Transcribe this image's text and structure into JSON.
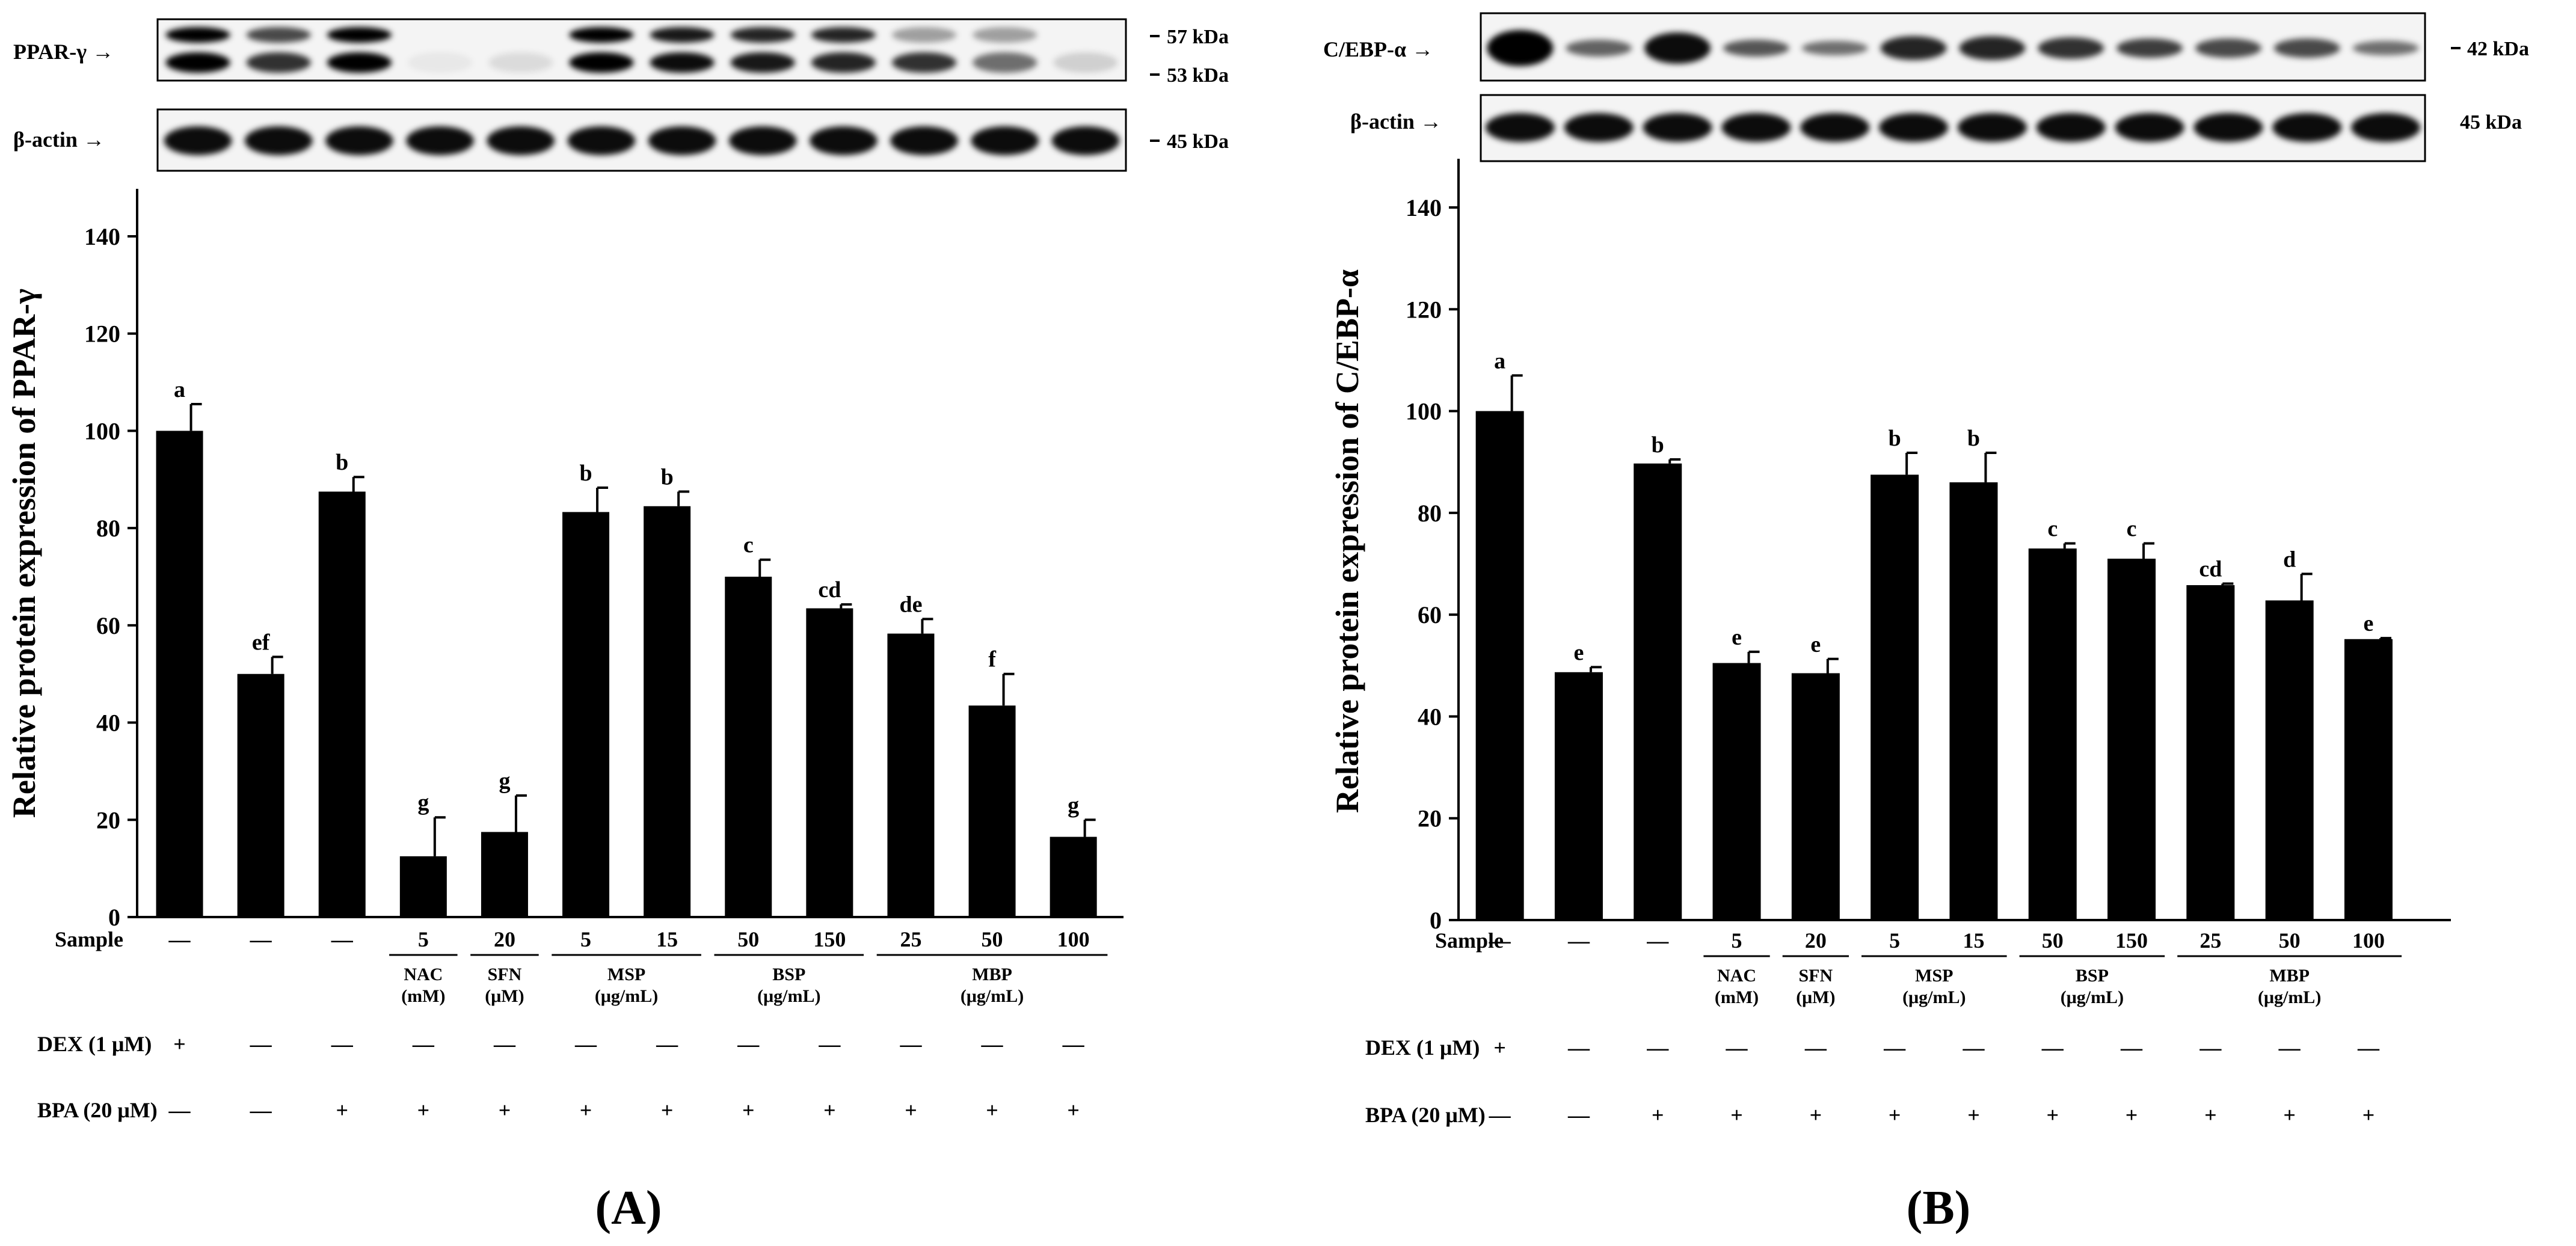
{
  "chart_data": [
    {
      "panel": "A",
      "type": "bar",
      "panel_label": "(A)",
      "ylabel": "Relative protein expression of PPAR-γ",
      "ylim": [
        0,
        150
      ],
      "yticks": [
        "0",
        "20",
        "40",
        "60",
        "80",
        "100",
        "120",
        "140"
      ],
      "values": [
        100,
        50,
        87.5,
        12.5,
        17.5,
        83.3,
        84.5,
        70,
        63.5,
        58.3,
        43.5,
        16.5
      ],
      "errors": [
        5.5,
        3.5,
        3.0,
        8.0,
        7.5,
        5.0,
        3.0,
        3.5,
        0.8,
        3.0,
        6.5,
        3.5
      ],
      "letters": [
        "a",
        "ef",
        "b",
        "g",
        "g",
        "b",
        "b",
        "c",
        "cd",
        "de",
        "f",
        "g"
      ],
      "blots": [
        {
          "label": "PPAR-γ →",
          "kda": [
            "57 kDa",
            "53 kDa"
          ]
        },
        {
          "label": "β-actin →",
          "kda": [
            "45 kDa"
          ]
        }
      ],
      "sample_label": "Sample",
      "samples": [
        "—",
        "—",
        "—",
        "5",
        "20",
        "5",
        "15",
        "50",
        "150",
        "25",
        "50",
        "100"
      ],
      "groups": [
        {
          "name": "NAC",
          "unit": "(mM)"
        },
        {
          "name": "SFN",
          "unit": "(μM)"
        },
        {
          "name": "MSP",
          "unit": "(μg/mL)"
        },
        {
          "name": "BSP",
          "unit": "(μg/mL)"
        },
        {
          "name": "MBP",
          "unit": "(μg/mL)"
        }
      ],
      "dex_label": "DEX (1 μM)",
      "dex": [
        "+",
        "—",
        "—",
        "—",
        "—",
        "—",
        "—",
        "—",
        "—",
        "—",
        "—",
        "—"
      ],
      "bpa_label": "BPA (20 μM)",
      "bpa": [
        "—",
        "—",
        "+",
        "+",
        "+",
        "+",
        "+",
        "+",
        "+",
        "+",
        "+",
        "+"
      ]
    },
    {
      "panel": "B",
      "type": "bar",
      "panel_label": "(B)",
      "ylabel": "Relative protein expression of C/EBP-α",
      "ylim": [
        0,
        150
      ],
      "yticks": [
        "0",
        "20",
        "40",
        "60",
        "80",
        "100",
        "120",
        "140"
      ],
      "values": [
        100,
        48.7,
        89.7,
        50.5,
        48.5,
        87.5,
        86,
        73,
        71,
        65.8,
        62.8,
        55.2
      ],
      "errors": [
        7.0,
        1.0,
        0.8,
        2.2,
        2.8,
        4.3,
        5.8,
        1.0,
        3.0,
        0.3,
        5.2,
        0.2
      ],
      "letters": [
        "a",
        "e",
        "b",
        "e",
        "e",
        "b",
        "b",
        "c",
        "c",
        "cd",
        "d",
        "e"
      ],
      "blots": [
        {
          "label": "C/EBP-α →",
          "kda": [
            "42 kDa"
          ]
        },
        {
          "label": "β-actin →",
          "kda": [
            "45 kDa"
          ]
        }
      ],
      "sample_label": "Sample",
      "samples": [
        "—",
        "—",
        "—",
        "5",
        "20",
        "5",
        "15",
        "50",
        "150",
        "25",
        "50",
        "100"
      ],
      "groups": [
        {
          "name": "NAC",
          "unit": "(mM)"
        },
        {
          "name": "SFN",
          "unit": "(μM)"
        },
        {
          "name": "MSP",
          "unit": "(μg/mL)"
        },
        {
          "name": "BSP",
          "unit": "(μg/mL)"
        },
        {
          "name": "MBP",
          "unit": "(μg/mL)"
        }
      ],
      "dex_label": "DEX (1 μM)",
      "dex": [
        "+",
        "—",
        "—",
        "—",
        "—",
        "—",
        "—",
        "—",
        "—",
        "—",
        "—",
        "—"
      ],
      "bpa_label": "BPA (20 μM)",
      "bpa": [
        "—",
        "—",
        "+",
        "+",
        "+",
        "+",
        "+",
        "+",
        "+",
        "+",
        "+",
        "+"
      ]
    }
  ]
}
